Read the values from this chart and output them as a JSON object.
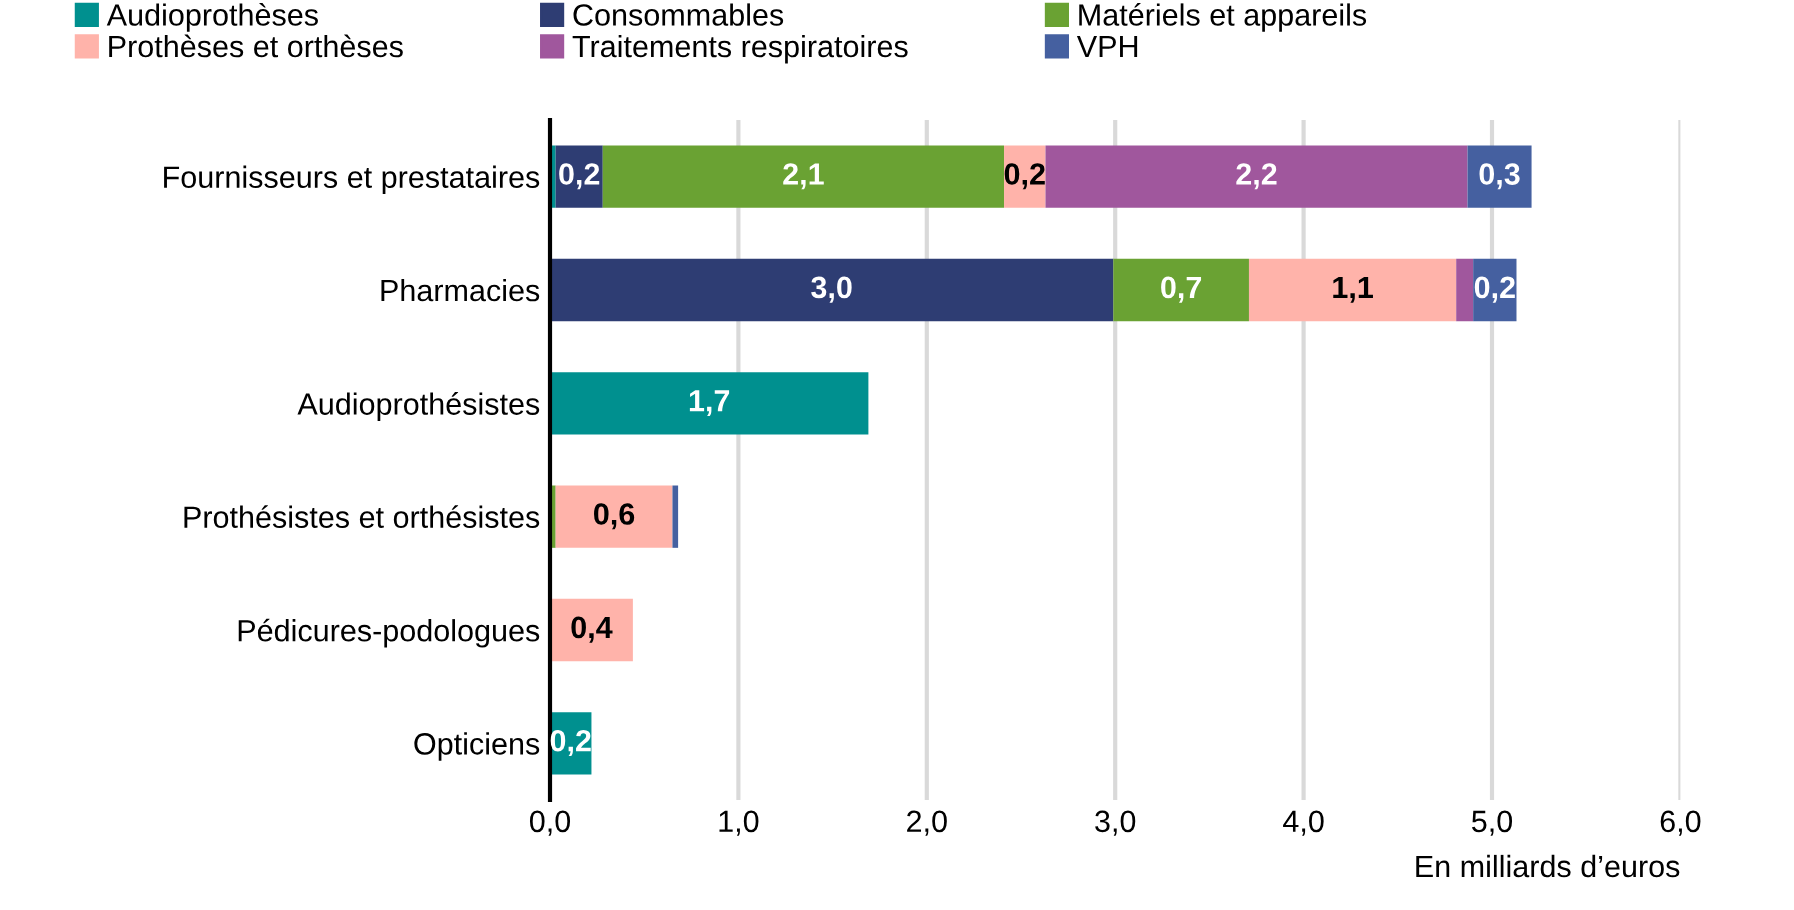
{
  "chart_data": {
    "type": "bar",
    "orientation": "horizontal",
    "stacked": true,
    "categories": [
      "Fournisseurs et prestataires",
      "Pharmacies",
      "Audioprothésistes",
      "Prothésistes et orthésistes",
      "Pédicures-podologues",
      "Opticiens"
    ],
    "series": [
      {
        "name": "Audioprothèses",
        "color": "#00908f",
        "values": [
          0.03,
          0,
          1.69,
          0,
          0,
          0.22
        ],
        "value_labels": [
          null,
          null,
          "1,7",
          null,
          null,
          "0,2"
        ]
      },
      {
        "name": "Consommables",
        "color": "#2e3d73",
        "values": [
          0.25,
          2.99,
          0,
          0,
          0,
          0
        ],
        "value_labels": [
          "0,2",
          "3,0",
          null,
          null,
          null,
          null
        ]
      },
      {
        "name": "Matériels et appareils",
        "color": "#6aa233",
        "values": [
          2.13,
          0.72,
          0,
          0.03,
          0,
          0
        ],
        "value_labels": [
          "2,1",
          "0,7",
          null,
          null,
          null,
          null
        ]
      },
      {
        "name": "Prothèses et orthèses",
        "color": "#ffb3aa",
        "values": [
          0.22,
          1.1,
          0,
          0.62,
          0.44,
          0
        ],
        "value_labels": [
          "0,2",
          "1,1",
          null,
          "0,6",
          "0,4",
          null
        ]
      },
      {
        "name": "Traitements respiratoires",
        "color": "#a0579d",
        "values": [
          2.24,
          0.09,
          0,
          0,
          0,
          0
        ],
        "value_labels": [
          "2,2",
          null,
          null,
          null,
          null,
          null
        ]
      },
      {
        "name": "VPH",
        "color": "#4560a0",
        "values": [
          0.34,
          0.23,
          0,
          0.03,
          0,
          0
        ],
        "value_labels": [
          "0,3",
          "0,2",
          null,
          null,
          null,
          null
        ]
      }
    ],
    "xlim": [
      0,
      6
    ],
    "xticks": [
      {
        "value": 0,
        "label": "0,0"
      },
      {
        "value": 1,
        "label": "1,0"
      },
      {
        "value": 2,
        "label": "2,0"
      },
      {
        "value": 3,
        "label": "3,0"
      },
      {
        "value": 4,
        "label": "4,0"
      },
      {
        "value": 5,
        "label": "5,0"
      },
      {
        "value": 6,
        "label": "6,0"
      }
    ],
    "xlabel": "En milliards d’euros",
    "grid": "x",
    "legend": "top"
  }
}
